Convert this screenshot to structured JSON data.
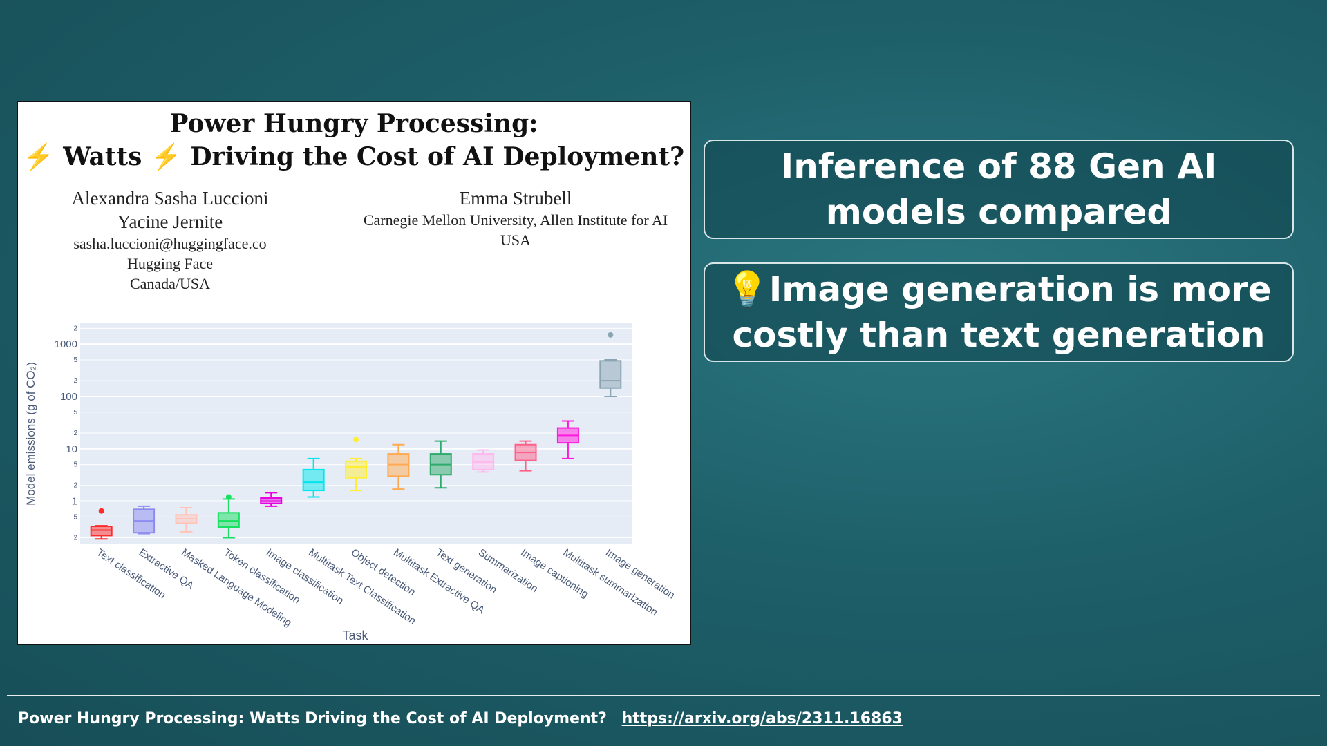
{
  "paper": {
    "title_line1": "Power Hungry Processing:",
    "title_bolt_icon": "⚡",
    "title_word_watts": "Watts",
    "title_rest": "Driving the Cost of AI Deployment?",
    "authors_left": {
      "name1": "Alexandra Sasha Luccioni",
      "name2": "Yacine Jernite",
      "email": "sasha.luccioni@huggingface.co",
      "org": "Hugging Face",
      "location": "Canada/USA"
    },
    "authors_right": {
      "name": "Emma Strubell",
      "affiliation": "Carnegie Mellon University, Allen Institute for AI",
      "location": "USA"
    }
  },
  "chart_data": {
    "type": "box",
    "xlabel": "Task",
    "ylabel": "Model emissions (g of CO₂)",
    "yscale": "log",
    "ylim": [
      0.15,
      2500
    ],
    "major_ticks": [
      {
        "v": 1,
        "label": "1"
      },
      {
        "v": 10,
        "label": "10"
      },
      {
        "v": 100,
        "label": "100"
      },
      {
        "v": 1000,
        "label": "1000"
      }
    ],
    "minor_ticks": [
      {
        "v": 0.2,
        "label": "2"
      },
      {
        "v": 0.5,
        "label": "5"
      },
      {
        "v": 2,
        "label": "2"
      },
      {
        "v": 5,
        "label": "5"
      },
      {
        "v": 20,
        "label": "2"
      },
      {
        "v": 50,
        "label": "5"
      },
      {
        "v": 200,
        "label": "2"
      },
      {
        "v": 500,
        "label": "5"
      },
      {
        "v": 2000,
        "label": "2"
      }
    ],
    "grid": true,
    "legend": "none",
    "boxes": [
      {
        "task": "Text classification",
        "color": "#ff2b2b",
        "min": 0.19,
        "q1": 0.22,
        "median": 0.28,
        "q3": 0.33,
        "max": 0.34,
        "outliers": [
          0.65
        ]
      },
      {
        "task": "Extractive QA",
        "color": "#8c8cf0",
        "min": 0.24,
        "q1": 0.25,
        "median": 0.42,
        "q3": 0.7,
        "max": 0.8,
        "outliers": []
      },
      {
        "task": "Masked Language Modeling",
        "color": "#ffc4b8",
        "min": 0.26,
        "q1": 0.38,
        "median": 0.46,
        "q3": 0.55,
        "max": 0.75,
        "outliers": []
      },
      {
        "task": "Token classification",
        "color": "#16e060",
        "min": 0.2,
        "q1": 0.32,
        "median": 0.42,
        "q3": 0.6,
        "max": 1.1,
        "outliers": [
          1.2
        ]
      },
      {
        "task": "Image classification",
        "color": "#e800e0",
        "min": 0.8,
        "q1": 0.9,
        "median": 1.0,
        "q3": 1.15,
        "max": 1.45,
        "outliers": []
      },
      {
        "task": "Multitask Text Classification",
        "color": "#00e5ee",
        "min": 1.2,
        "q1": 1.6,
        "median": 2.3,
        "q3": 4.0,
        "max": 6.5,
        "outliers": []
      },
      {
        "task": "Object detection",
        "color": "#ffee33",
        "min": 1.6,
        "q1": 2.8,
        "median": 4.5,
        "q3": 5.8,
        "max": 6.5,
        "outliers": [
          15.0
        ]
      },
      {
        "task": "Multitask Extractive QA",
        "color": "#ffaa50",
        "min": 1.7,
        "q1": 3.0,
        "median": 5.0,
        "q3": 8.0,
        "max": 12.0,
        "outliers": []
      },
      {
        "task": "Text generation",
        "color": "#2eaa6a",
        "min": 1.8,
        "q1": 3.2,
        "median": 5.0,
        "q3": 8.0,
        "max": 14.0,
        "outliers": []
      },
      {
        "task": "Summarization",
        "color": "#ffb8ee",
        "min": 3.6,
        "q1": 4.0,
        "median": 5.6,
        "q3": 8.0,
        "max": 9.5,
        "outliers": []
      },
      {
        "task": "Image captioning",
        "color": "#ff6088",
        "min": 3.8,
        "q1": 6.0,
        "median": 8.5,
        "q3": 12.0,
        "max": 14.0,
        "outliers": []
      },
      {
        "task": "Multitask summarization",
        "color": "#ff18dd",
        "min": 6.5,
        "q1": 13.0,
        "median": 18.0,
        "q3": 25.0,
        "max": 34.0,
        "outliers": []
      },
      {
        "task": "Image generation",
        "color": "#8aa4b4",
        "min": 100.0,
        "q1": 145.0,
        "median": 200.0,
        "q3": 480.0,
        "max": 500.0,
        "outliers": [
          1500.0
        ]
      }
    ]
  },
  "callouts": {
    "first": "Inference of 88 Gen AI models compared",
    "second_icon": "💡",
    "second": "Image generation is more costly than text generation"
  },
  "footer": {
    "title": "Power Hungry Processing: Watts Driving the Cost of AI Deployment?",
    "link": "https://arxiv.org/abs/2311.16863"
  }
}
